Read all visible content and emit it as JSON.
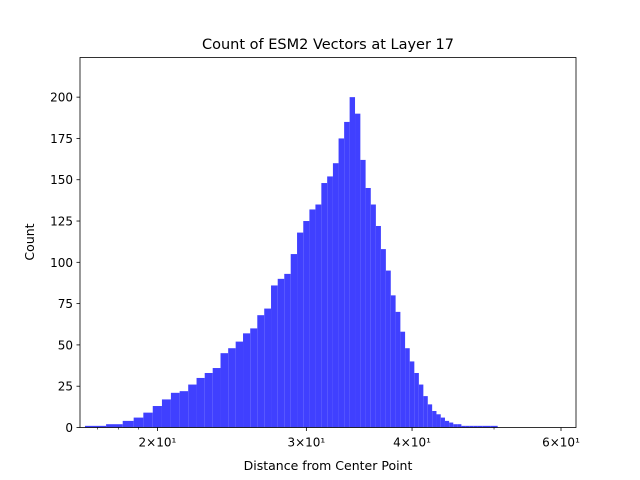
{
  "chart_data": {
    "type": "bar",
    "title": "Count of ESM2 Vectors at Layer 17",
    "xlabel": "Distance from Center Point",
    "ylabel": "Count",
    "x_scale": "log",
    "xlim": [
      16.2,
      62.5
    ],
    "ylim": [
      0,
      224
    ],
    "x_ticks": [
      {
        "value": 20,
        "label": "2×10¹"
      },
      {
        "value": 30,
        "label": "3×10¹"
      },
      {
        "value": 40,
        "label": "4×10¹"
      },
      {
        "value": 60,
        "label": "6×10¹"
      }
    ],
    "y_ticks": [
      0,
      25,
      50,
      75,
      100,
      125,
      150,
      175,
      200
    ],
    "bar_color": "#4040ff",
    "grid": false,
    "legend": "none",
    "x": [
      16.9,
      17.9,
      18.5,
      19.0,
      19.5,
      20.0,
      20.5,
      21.0,
      21.5,
      22.0,
      22.5,
      23.0,
      23.5,
      24.0,
      24.5,
      25.0,
      25.5,
      26.0,
      26.5,
      27.0,
      27.5,
      28.0,
      28.5,
      29.0,
      29.5,
      30.0,
      30.5,
      31.0,
      31.5,
      32.0,
      32.5,
      33.0,
      33.5,
      34.0,
      34.5,
      35.0,
      35.5,
      36.0,
      36.5,
      37.0,
      37.5,
      38.0,
      38.5,
      39.0,
      39.5,
      40.0,
      40.5,
      41.0,
      41.5,
      42.0,
      42.5,
      43.0,
      43.5,
      44.0,
      44.5,
      45.0,
      45.5,
      46.0,
      46.5,
      47.0,
      47.5,
      48.0,
      49.0,
      50.0,
      51.0
    ],
    "values": [
      1,
      2,
      4,
      6,
      9,
      13,
      17,
      21,
      22,
      26,
      30,
      33,
      36,
      45,
      48,
      52,
      57,
      60,
      68,
      72,
      86,
      90,
      93,
      105,
      118,
      125,
      132,
      135,
      148,
      152,
      160,
      175,
      185,
      200,
      190,
      162,
      145,
      135,
      122,
      108,
      95,
      80,
      70,
      58,
      48,
      40,
      33,
      26,
      19,
      14,
      10,
      8,
      6,
      4,
      3,
      2,
      2,
      1,
      1,
      1,
      1,
      1,
      1,
      1,
      0
    ]
  }
}
